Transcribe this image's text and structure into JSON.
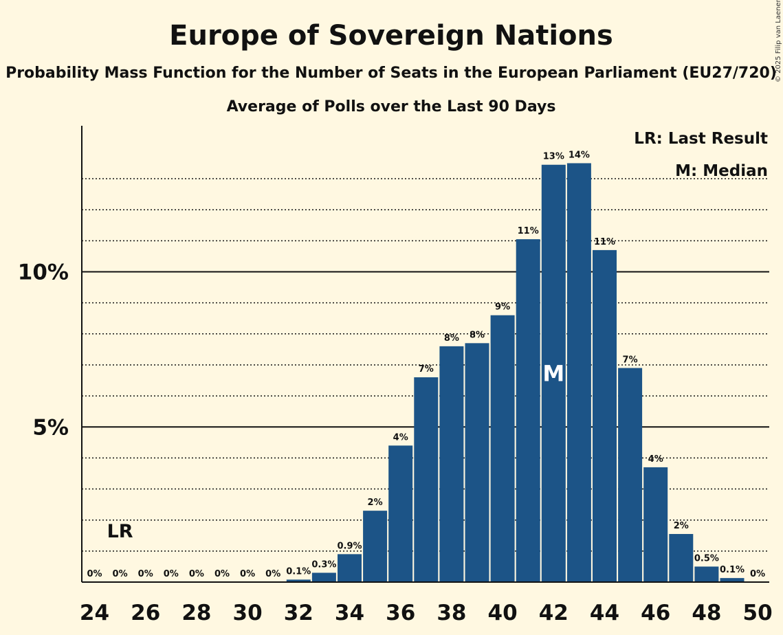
{
  "chart_data": {
    "type": "bar",
    "title": "Europe of Sovereign Nations",
    "subtitle": "Probability Mass Function for the Number of Seats in the European Parliament (EU27/720)",
    "subtitle2": "Average of Polls over the Last 90 Days",
    "copyright": "© 2025 Filip van Laenen",
    "xlabel": "",
    "ylabel": "",
    "categories": [
      24,
      25,
      26,
      27,
      28,
      29,
      30,
      31,
      32,
      33,
      34,
      35,
      36,
      37,
      38,
      39,
      40,
      41,
      42,
      43,
      44,
      45,
      46,
      47,
      48,
      49,
      50
    ],
    "x_tick_labels": [
      "24",
      "26",
      "28",
      "30",
      "32",
      "34",
      "36",
      "38",
      "40",
      "42",
      "44",
      "46",
      "48",
      "50"
    ],
    "values": [
      0,
      0,
      0,
      0,
      0,
      0,
      0,
      0,
      0.08,
      0.3,
      0.9,
      2.3,
      4.4,
      6.6,
      7.6,
      7.7,
      8.6,
      11.05,
      13.45,
      13.5,
      10.7,
      6.9,
      3.7,
      1.55,
      0.5,
      0.13,
      0
    ],
    "value_labels": [
      "0%",
      "0%",
      "0%",
      "0%",
      "0%",
      "0%",
      "0%",
      "0%",
      "0.1%",
      "0.3%",
      "0.9%",
      "2%",
      "4%",
      "7%",
      "8%",
      "8%",
      "9%",
      "11%",
      "13%",
      "14%",
      "11%",
      "7%",
      "4%",
      "2%",
      "0.5%",
      "0.1%",
      "0%"
    ],
    "ylim": [
      0,
      14.7
    ],
    "y_major_ticks": [
      5,
      10
    ],
    "y_tick_labels": [
      "5%",
      "10%"
    ],
    "y_minor_gridlines": [
      1,
      2,
      3,
      4,
      6,
      7,
      8,
      9,
      11,
      12,
      13
    ],
    "last_result_seat": 25,
    "median_seat": 42,
    "legend": {
      "last_result": "LR: Last Result",
      "median": "M: Median"
    },
    "lr_marker": "LR",
    "median_marker": "M",
    "bar_color": "#1c5487",
    "background_color": "#fff8e1"
  }
}
